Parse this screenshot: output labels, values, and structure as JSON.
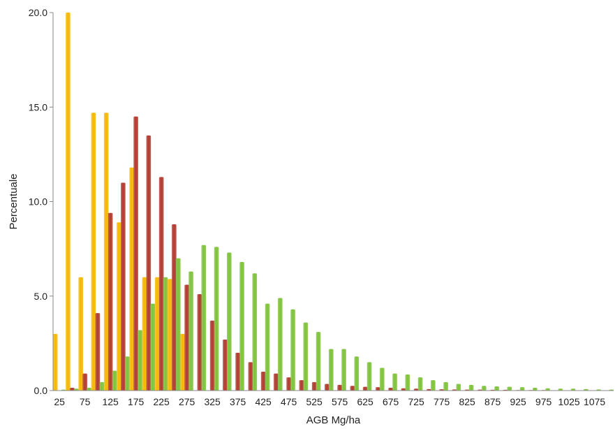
{
  "chart_data": {
    "type": "bar",
    "xlabel": "AGB Mg/ha",
    "ylabel": "Percentuale",
    "ylim": [
      0,
      20
    ],
    "yticks": [
      "0.0",
      "5.0",
      "10.0",
      "15.0",
      "20.0"
    ],
    "grid": false,
    "legend": "none",
    "categories": [
      25,
      50,
      75,
      100,
      125,
      150,
      175,
      200,
      225,
      250,
      275,
      300,
      325,
      350,
      375,
      400,
      425,
      450,
      475,
      500,
      525,
      550,
      575,
      600,
      625,
      650,
      675,
      700,
      725,
      750,
      775,
      800,
      825,
      850,
      875,
      900,
      925,
      950,
      975,
      1000,
      1025,
      1050,
      1075,
      1100
    ],
    "xtick_labels": [
      "25",
      "75",
      "125",
      "175",
      "225",
      "275",
      "325",
      "375",
      "425",
      "475",
      "525",
      "575",
      "625",
      "675",
      "725",
      "775",
      "825",
      "875",
      "925",
      "975",
      "1025",
      "1075"
    ],
    "series": [
      {
        "color": "#f5b800",
        "values": [
          3.0,
          20.0,
          6.0,
          14.7,
          14.7,
          8.9,
          11.8,
          6.0,
          6.0,
          5.9,
          3.0,
          0,
          0,
          0,
          0,
          0,
          0,
          0,
          0,
          0,
          0,
          0,
          0,
          0,
          0,
          0,
          0,
          0,
          0,
          0,
          0,
          0,
          0,
          0,
          0,
          0,
          0,
          0,
          0,
          0,
          0,
          0,
          0,
          0
        ]
      },
      {
        "color": "#b03a2e",
        "values": [
          0,
          0.15,
          0.9,
          4.1,
          9.4,
          11.0,
          14.5,
          13.5,
          11.3,
          8.8,
          5.6,
          5.1,
          3.7,
          2.7,
          2.0,
          1.5,
          1.0,
          0.9,
          0.7,
          0.55,
          0.45,
          0.35,
          0.3,
          0.25,
          0.2,
          0.18,
          0.15,
          0.12,
          0.1,
          0.08,
          0.07,
          0.06,
          0.05,
          0.05,
          0.04,
          0.04,
          0.03,
          0.03,
          0.03,
          0.02,
          0.02,
          0.02,
          0.02,
          0.02
        ]
      },
      {
        "color": "#7ec23a",
        "values": [
          0.05,
          0.1,
          0.15,
          0.45,
          1.05,
          1.8,
          3.2,
          4.6,
          6.0,
          7.0,
          6.3,
          7.7,
          7.6,
          7.3,
          6.8,
          6.2,
          4.6,
          4.9,
          4.3,
          3.6,
          3.1,
          2.2,
          2.2,
          1.8,
          1.5,
          1.2,
          0.9,
          0.85,
          0.7,
          0.55,
          0.45,
          0.35,
          0.3,
          0.25,
          0.22,
          0.2,
          0.18,
          0.15,
          0.12,
          0.1,
          0.1,
          0.08,
          0.06,
          0.05
        ]
      }
    ]
  }
}
